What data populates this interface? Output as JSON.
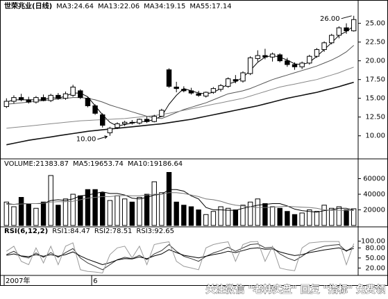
{
  "chart_data": [
    {
      "type": "candlestick",
      "title": "世荣兆业(日线)",
      "categories": [
        "2007年",
        null,
        null,
        null,
        null,
        null,
        null,
        null,
        null,
        null,
        null,
        null,
        "6",
        null,
        null,
        null,
        null,
        null,
        null,
        null,
        null,
        null,
        null,
        null,
        null,
        null,
        null,
        null,
        null,
        null,
        null,
        null,
        null,
        null,
        null,
        null,
        null,
        null,
        null,
        null,
        null,
        null,
        null,
        null,
        null,
        null,
        null,
        null
      ],
      "open": [
        13.9,
        14.6,
        15.1,
        14.8,
        14.5,
        15.1,
        14.7,
        15.4,
        15.0,
        15.4,
        16.0,
        15.0,
        14.0,
        12.8,
        10.4,
        11.1,
        11.6,
        11.8,
        11.7,
        12.2,
        11.9,
        12.6,
        18.8,
        16.5,
        16.2,
        16.0,
        15.6,
        15.3,
        15.8,
        16.2,
        16.6,
        17.5,
        17.3,
        18.3,
        20.3,
        20.7,
        20.5,
        20.8,
        20.0,
        19.5,
        19.2,
        19.7,
        20.6,
        21.5,
        22.4,
        23.4,
        24.4,
        24.0
      ],
      "high": [
        15.0,
        15.4,
        15.6,
        15.2,
        15.3,
        15.5,
        15.6,
        15.7,
        15.9,
        16.8,
        16.2,
        15.2,
        14.2,
        13.0,
        11.2,
        11.8,
        12.0,
        12.1,
        12.3,
        12.6,
        12.8,
        13.6,
        19.0,
        17.2,
        16.6,
        16.4,
        16.0,
        15.9,
        16.5,
        16.9,
        17.8,
        18.1,
        18.6,
        20.6,
        21.4,
        21.6,
        21.1,
        21.0,
        20.4,
        19.8,
        19.9,
        20.8,
        21.7,
        22.6,
        23.6,
        24.6,
        25.0,
        26.0
      ],
      "low": [
        13.7,
        14.3,
        14.6,
        14.3,
        14.3,
        14.6,
        14.5,
        14.8,
        14.8,
        15.2,
        14.9,
        13.8,
        12.8,
        11.1,
        10.0,
        10.9,
        11.3,
        11.5,
        11.5,
        11.7,
        11.8,
        12.5,
        16.4,
        15.8,
        15.8,
        15.5,
        15.2,
        15.1,
        15.6,
        15.9,
        16.4,
        17.0,
        17.1,
        18.1,
        19.9,
        20.2,
        19.9,
        19.8,
        19.2,
        18.8,
        18.9,
        19.5,
        20.4,
        21.2,
        22.2,
        23.0,
        23.6,
        23.9
      ],
      "close": [
        14.6,
        15.1,
        14.8,
        14.5,
        15.1,
        14.7,
        15.4,
        15.0,
        15.6,
        16.5,
        15.1,
        14.0,
        13.0,
        11.4,
        11.0,
        11.6,
        11.8,
        11.7,
        12.2,
        11.9,
        12.6,
        13.4,
        16.6,
        16.3,
        16.0,
        15.7,
        15.4,
        15.8,
        16.3,
        16.7,
        17.6,
        17.3,
        18.4,
        20.4,
        20.7,
        20.5,
        20.9,
        20.0,
        19.5,
        19.2,
        19.7,
        20.6,
        21.5,
        22.4,
        23.4,
        24.4,
        24.0,
        25.5
      ],
      "series": [
        {
          "name": "MA3:24.64",
          "color": "#000000",
          "values": [
            14.5,
            14.8,
            14.8,
            14.8,
            14.8,
            14.8,
            15.1,
            15.0,
            15.3,
            15.7,
            15.7,
            15.2,
            14.0,
            12.8,
            11.8,
            11.3,
            11.5,
            11.7,
            11.9,
            11.9,
            12.2,
            12.6,
            14.2,
            15.4,
            16.3,
            16.0,
            15.7,
            15.6,
            15.8,
            16.3,
            16.9,
            17.2,
            17.8,
            18.7,
            19.8,
            20.5,
            20.7,
            20.5,
            20.1,
            19.6,
            19.5,
            19.8,
            20.6,
            21.5,
            22.4,
            23.4,
            23.9,
            24.64
          ]
        },
        {
          "name": "MA13:22.06",
          "color": "#555555",
          "values": [
            14.2,
            14.3,
            14.4,
            14.5,
            14.6,
            14.7,
            14.8,
            14.9,
            15.0,
            15.1,
            15.1,
            15.0,
            14.8,
            14.5,
            14.1,
            13.8,
            13.5,
            13.2,
            12.9,
            12.6,
            12.4,
            12.3,
            12.7,
            13.1,
            13.5,
            13.8,
            14.1,
            14.4,
            14.8,
            15.2,
            15.6,
            15.8,
            16.0,
            16.3,
            16.7,
            17.1,
            17.5,
            17.8,
            18.1,
            18.4,
            18.7,
            19.0,
            19.3,
            19.7,
            20.1,
            20.6,
            21.2,
            22.06
          ]
        },
        {
          "name": "MA34:19.15",
          "color": "#888888",
          "values": [
            11.0,
            11.1,
            11.2,
            11.3,
            11.4,
            11.5,
            11.6,
            11.7,
            11.8,
            11.9,
            12.0,
            12.05,
            12.1,
            12.15,
            12.2,
            12.25,
            12.3,
            12.4,
            12.5,
            12.6,
            12.7,
            12.85,
            13.0,
            13.2,
            13.4,
            13.6,
            13.8,
            14.0,
            14.2,
            14.4,
            14.6,
            14.8,
            15.0,
            15.3,
            15.6,
            15.9,
            16.2,
            16.5,
            16.7,
            16.9,
            17.1,
            17.3,
            17.5,
            17.8,
            18.1,
            18.4,
            18.8,
            19.15
          ]
        },
        {
          "name": "MA55:17.14",
          "color": "#111111",
          "values": [
            8.8,
            9.0,
            9.2,
            9.4,
            9.55,
            9.7,
            9.85,
            10.0,
            10.15,
            10.3,
            10.45,
            10.6,
            10.7,
            10.8,
            10.9,
            11.0,
            11.1,
            11.2,
            11.3,
            11.4,
            11.5,
            11.6,
            11.75,
            11.9,
            12.05,
            12.2,
            12.4,
            12.6,
            12.8,
            13.0,
            13.2,
            13.4,
            13.6,
            13.8,
            14.0,
            14.25,
            14.5,
            14.75,
            15.0,
            15.2,
            15.4,
            15.6,
            15.8,
            16.05,
            16.3,
            16.55,
            16.85,
            17.14
          ]
        }
      ],
      "annotations": [
        "26.00",
        "10.00"
      ],
      "ylim": [
        7.2,
        27.0
      ],
      "yticks": [
        {
          "value": 10,
          "label": "10.00"
        },
        {
          "value": 12.5,
          "label": "12.50"
        },
        {
          "value": 15,
          "label": "15.00"
        },
        {
          "value": 17.5,
          "label": "17.50"
        },
        {
          "value": 20,
          "label": "20.00"
        },
        {
          "value": 22.5,
          "label": "22.50"
        },
        {
          "value": 25,
          "label": "25.00"
        }
      ]
    },
    {
      "type": "bar",
      "series": [
        {
          "name": "VOLUME:21383.87",
          "type": "bar",
          "color": "#000000",
          "values": [
            30000,
            24000,
            36000,
            28000,
            22000,
            30000,
            64000,
            26000,
            34000,
            40000,
            38000,
            46000,
            46000,
            42000,
            32000,
            38000,
            34000,
            30000,
            36000,
            40000,
            56000,
            42000,
            68000,
            30000,
            26000,
            24000,
            20000,
            14000,
            18000,
            24000,
            22000,
            20000,
            26000,
            30000,
            34000,
            28000,
            24000,
            22000,
            18000,
            14000,
            16000,
            20000,
            18000,
            26000,
            22000,
            24000,
            20000,
            21383.87
          ]
        },
        {
          "name": "MA5:19653.74",
          "type": "line",
          "color": "#000000",
          "values": [
            28000,
            27000,
            28000,
            28000,
            28000,
            28000,
            32000,
            33000,
            32000,
            34000,
            38000,
            39000,
            41000,
            43000,
            41000,
            41000,
            39000,
            35000,
            34000,
            36000,
            39000,
            40000,
            46000,
            46000,
            44000,
            38000,
            34000,
            23000,
            20000,
            20000,
            19500,
            19500,
            22000,
            24000,
            26000,
            27000,
            28000,
            28000,
            25000,
            21000,
            19000,
            18000,
            17000,
            19000,
            20000,
            22000,
            22000,
            19653.74
          ]
        },
        {
          "name": "MA10:19186.64",
          "type": "line",
          "color": "#777777",
          "values": [
            27000,
            27000,
            27500,
            28000,
            28000,
            28500,
            30000,
            30500,
            30500,
            31000,
            33000,
            35000,
            36000,
            37000,
            37000,
            38000,
            38500,
            38000,
            38000,
            39000,
            40000,
            40000,
            42000,
            42000,
            41000,
            39000,
            37000,
            34000,
            33000,
            31000,
            28000,
            26000,
            25000,
            24000,
            23000,
            23000,
            23500,
            24000,
            24500,
            24000,
            23500,
            23000,
            22000,
            20000,
            19500,
            19500,
            19000,
            19186.64
          ]
        }
      ],
      "ylim": [
        0,
        72000
      ],
      "yticks": [
        20000,
        40000,
        60000
      ]
    },
    {
      "type": "line",
      "title": "RSI(6,12,2)",
      "series": [
        {
          "name": "RSI1:84.47",
          "color": "#333333",
          "values": [
            60,
            70,
            55,
            50,
            65,
            52,
            66,
            52,
            66,
            78,
            50,
            35,
            25,
            15,
            30,
            45,
            52,
            48,
            58,
            45,
            62,
            72,
            90,
            70,
            55,
            48,
            40,
            55,
            65,
            72,
            82,
            70,
            80,
            90,
            92,
            80,
            82,
            62,
            50,
            42,
            55,
            70,
            78,
            85,
            88,
            90,
            70,
            84.47
          ]
        },
        {
          "name": "RSI2:78.51",
          "color": "#000000",
          "values": [
            58,
            62,
            56,
            54,
            60,
            55,
            60,
            55,
            60,
            68,
            56,
            46,
            38,
            30,
            36,
            44,
            48,
            47,
            53,
            48,
            56,
            62,
            75,
            66,
            58,
            54,
            50,
            55,
            60,
            64,
            70,
            66,
            72,
            78,
            80,
            76,
            77,
            68,
            62,
            57,
            60,
            66,
            70,
            74,
            77,
            80,
            72,
            78.51
          ]
        },
        {
          "name": "RSI3:92.65",
          "color": "#999999",
          "values": [
            70,
            85,
            40,
            30,
            80,
            35,
            85,
            30,
            85,
            95,
            15,
            10,
            8,
            5,
            60,
            80,
            85,
            50,
            85,
            30,
            90,
            95,
            98,
            40,
            25,
            20,
            15,
            80,
            90,
            95,
            98,
            40,
            90,
            98,
            99,
            40,
            85,
            20,
            15,
            12,
            80,
            95,
            97,
            99,
            99,
            99,
            30,
            92.65
          ]
        }
      ],
      "ylim": [
        0,
        120
      ],
      "yticks": [
        {
          "value": 20,
          "label": "20.00"
        },
        {
          "value": 50,
          "label": "50.00"
        },
        {
          "value": 80,
          "label": "80.00"
        },
        {
          "value": 100,
          "label": "100.00"
        }
      ]
    }
  ],
  "watermark": "关注微信 \"老韩实盘\" 回复 \"指标\" 免费领"
}
